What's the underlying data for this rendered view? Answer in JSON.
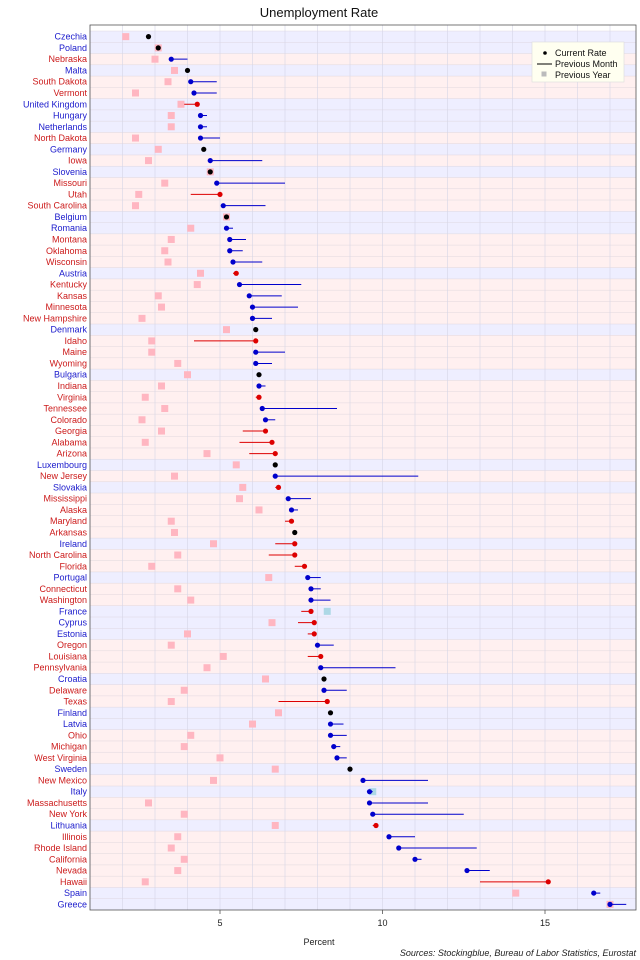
{
  "chart_data": {
    "type": "scatter",
    "title": "Unemployment Rate",
    "xlabel": "Percent",
    "ylabel": "",
    "source": "Sources: Stockingblue, Bureau of Labor Statistics, Eurostat",
    "xlim": [
      1.0,
      17.8
    ],
    "xticks": [
      5,
      10,
      15
    ],
    "legend": {
      "position": "top-right",
      "items": [
        "Current Rate",
        "Previous Month",
        "Previous Year"
      ]
    },
    "colors": {
      "eu_label": "#1a1acc",
      "us_label": "#cc1a1a",
      "improving": "#0000cc",
      "worsening": "#dd0000",
      "unchanged": "#000000",
      "prev_year_us": "#ffb6c1",
      "prev_year_eu": "#add8e6",
      "eu_band": "#eeeeff",
      "us_band": "#fff0f0"
    },
    "rows": [
      {
        "name": "Czechia",
        "group": "EU",
        "current": 2.8,
        "prev_month": 2.8,
        "prev_year": 2.1
      },
      {
        "name": "Poland",
        "group": "EU",
        "current": 3.1,
        "prev_month": 3.1,
        "prev_year": 3.1
      },
      {
        "name": "Nebraska",
        "group": "US",
        "current": 3.5,
        "prev_month": 4.0,
        "prev_year": 3.0
      },
      {
        "name": "Malta",
        "group": "EU",
        "current": 4.0,
        "prev_month": 4.0,
        "prev_year": 3.6
      },
      {
        "name": "South Dakota",
        "group": "US",
        "current": 4.1,
        "prev_month": 4.9,
        "prev_year": 3.4
      },
      {
        "name": "Vermont",
        "group": "US",
        "current": 4.2,
        "prev_month": 4.9,
        "prev_year": 2.4
      },
      {
        "name": "United Kingdom",
        "group": "EU",
        "current": 4.3,
        "prev_month": 3.9,
        "prev_year": 3.8
      },
      {
        "name": "Hungary",
        "group": "EU",
        "current": 4.4,
        "prev_month": 4.6,
        "prev_year": 3.5
      },
      {
        "name": "Netherlands",
        "group": "EU",
        "current": 4.4,
        "prev_month": 4.6,
        "prev_year": 3.5
      },
      {
        "name": "North Dakota",
        "group": "US",
        "current": 4.4,
        "prev_month": 5.0,
        "prev_year": 2.4
      },
      {
        "name": "Germany",
        "group": "EU",
        "current": 4.5,
        "prev_month": 4.5,
        "prev_year": 3.1
      },
      {
        "name": "Iowa",
        "group": "US",
        "current": 4.7,
        "prev_month": 6.3,
        "prev_year": 2.8
      },
      {
        "name": "Slovenia",
        "group": "EU",
        "current": 4.7,
        "prev_month": 4.7,
        "prev_year": 4.7
      },
      {
        "name": "Missouri",
        "group": "US",
        "current": 4.9,
        "prev_month": 7.0,
        "prev_year": 3.3
      },
      {
        "name": "Utah",
        "group": "US",
        "current": 5.0,
        "prev_month": 4.1,
        "prev_year": 2.5
      },
      {
        "name": "South Carolina",
        "group": "US",
        "current": 5.1,
        "prev_month": 6.4,
        "prev_year": 2.4
      },
      {
        "name": "Belgium",
        "group": "EU",
        "current": 5.2,
        "prev_month": 5.2,
        "prev_year": 5.2
      },
      {
        "name": "Romania",
        "group": "EU",
        "current": 5.2,
        "prev_month": 5.4,
        "prev_year": 4.1
      },
      {
        "name": "Montana",
        "group": "US",
        "current": 5.3,
        "prev_month": 5.8,
        "prev_year": 3.5
      },
      {
        "name": "Oklahoma",
        "group": "US",
        "current": 5.3,
        "prev_month": 5.7,
        "prev_year": 3.3
      },
      {
        "name": "Wisconsin",
        "group": "US",
        "current": 5.4,
        "prev_month": 6.3,
        "prev_year": 3.4
      },
      {
        "name": "Austria",
        "group": "EU",
        "current": 5.5,
        "prev_month": 5.4,
        "prev_year": 4.4
      },
      {
        "name": "Kentucky",
        "group": "US",
        "current": 5.6,
        "prev_month": 7.5,
        "prev_year": 4.3
      },
      {
        "name": "Kansas",
        "group": "US",
        "current": 5.9,
        "prev_month": 6.9,
        "prev_year": 3.1
      },
      {
        "name": "Minnesota",
        "group": "US",
        "current": 6.0,
        "prev_month": 7.4,
        "prev_year": 3.2
      },
      {
        "name": "New Hampshire",
        "group": "US",
        "current": 6.0,
        "prev_month": 6.6,
        "prev_year": 2.6
      },
      {
        "name": "Denmark",
        "group": "EU",
        "current": 6.1,
        "prev_month": 6.1,
        "prev_year": 5.2
      },
      {
        "name": "Idaho",
        "group": "US",
        "current": 6.1,
        "prev_month": 4.2,
        "prev_year": 2.9
      },
      {
        "name": "Maine",
        "group": "US",
        "current": 6.1,
        "prev_month": 7.0,
        "prev_year": 2.9
      },
      {
        "name": "Wyoming",
        "group": "US",
        "current": 6.1,
        "prev_month": 6.6,
        "prev_year": 3.7
      },
      {
        "name": "Bulgaria",
        "group": "EU",
        "current": 6.2,
        "prev_month": 6.2,
        "prev_year": 4.0
      },
      {
        "name": "Indiana",
        "group": "US",
        "current": 6.2,
        "prev_month": 6.4,
        "prev_year": 3.2
      },
      {
        "name": "Virginia",
        "group": "US",
        "current": 6.2,
        "prev_month": 6.1,
        "prev_year": 2.7
      },
      {
        "name": "Tennessee",
        "group": "US",
        "current": 6.3,
        "prev_month": 8.6,
        "prev_year": 3.3
      },
      {
        "name": "Colorado",
        "group": "US",
        "current": 6.4,
        "prev_month": 6.7,
        "prev_year": 2.6
      },
      {
        "name": "Georgia",
        "group": "US",
        "current": 6.4,
        "prev_month": 5.7,
        "prev_year": 3.2
      },
      {
        "name": "Alabama",
        "group": "US",
        "current": 6.6,
        "prev_month": 5.6,
        "prev_year": 2.7
      },
      {
        "name": "Arizona",
        "group": "US",
        "current": 6.7,
        "prev_month": 5.9,
        "prev_year": 4.6
      },
      {
        "name": "Luxembourg",
        "group": "EU",
        "current": 6.7,
        "prev_month": 6.7,
        "prev_year": 5.5
      },
      {
        "name": "New Jersey",
        "group": "US",
        "current": 6.7,
        "prev_month": 11.1,
        "prev_year": 3.6
      },
      {
        "name": "Slovakia",
        "group": "EU",
        "current": 6.8,
        "prev_month": 6.7,
        "prev_year": 5.7
      },
      {
        "name": "Mississippi",
        "group": "US",
        "current": 7.1,
        "prev_month": 7.8,
        "prev_year": 5.6
      },
      {
        "name": "Alaska",
        "group": "US",
        "current": 7.2,
        "prev_month": 7.4,
        "prev_year": 6.2
      },
      {
        "name": "Maryland",
        "group": "US",
        "current": 7.2,
        "prev_month": 7.0,
        "prev_year": 3.5
      },
      {
        "name": "Arkansas",
        "group": "US",
        "current": 7.3,
        "prev_month": 7.3,
        "prev_year": 3.6
      },
      {
        "name": "Ireland",
        "group": "EU",
        "current": 7.3,
        "prev_month": 6.7,
        "prev_year": 4.8
      },
      {
        "name": "North Carolina",
        "group": "US",
        "current": 7.3,
        "prev_month": 6.5,
        "prev_year": 3.7
      },
      {
        "name": "Florida",
        "group": "US",
        "current": 7.6,
        "prev_month": 7.3,
        "prev_year": 2.9
      },
      {
        "name": "Portugal",
        "group": "EU",
        "current": 7.7,
        "prev_month": 8.1,
        "prev_year": 6.5
      },
      {
        "name": "Connecticut",
        "group": "US",
        "current": 7.8,
        "prev_month": 8.1,
        "prev_year": 3.7
      },
      {
        "name": "Washington",
        "group": "US",
        "current": 7.8,
        "prev_month": 8.4,
        "prev_year": 4.1
      },
      {
        "name": "France",
        "group": "EU",
        "current": 7.8,
        "prev_month": 7.5,
        "prev_year": 8.3
      },
      {
        "name": "Cyprus",
        "group": "EU",
        "current": 7.9,
        "prev_month": 7.4,
        "prev_year": 6.6
      },
      {
        "name": "Estonia",
        "group": "EU",
        "current": 7.9,
        "prev_month": 7.7,
        "prev_year": 4.0
      },
      {
        "name": "Oregon",
        "group": "US",
        "current": 8.0,
        "prev_month": 8.5,
        "prev_year": 3.5
      },
      {
        "name": "Louisiana",
        "group": "US",
        "current": 8.1,
        "prev_month": 7.7,
        "prev_year": 5.1
      },
      {
        "name": "Pennsylvania",
        "group": "US",
        "current": 8.1,
        "prev_month": 10.4,
        "prev_year": 4.6
      },
      {
        "name": "Croatia",
        "group": "EU",
        "current": 8.2,
        "prev_month": 8.2,
        "prev_year": 6.4
      },
      {
        "name": "Delaware",
        "group": "US",
        "current": 8.2,
        "prev_month": 8.9,
        "prev_year": 3.9
      },
      {
        "name": "Texas",
        "group": "US",
        "current": 8.3,
        "prev_month": 6.8,
        "prev_year": 3.5
      },
      {
        "name": "Finland",
        "group": "EU",
        "current": 8.4,
        "prev_month": 8.4,
        "prev_year": 6.8
      },
      {
        "name": "Latvia",
        "group": "EU",
        "current": 8.4,
        "prev_month": 8.8,
        "prev_year": 6.0
      },
      {
        "name": "Ohio",
        "group": "US",
        "current": 8.4,
        "prev_month": 8.9,
        "prev_year": 4.1
      },
      {
        "name": "Michigan",
        "group": "US",
        "current": 8.5,
        "prev_month": 8.7,
        "prev_year": 3.9
      },
      {
        "name": "West Virginia",
        "group": "US",
        "current": 8.6,
        "prev_month": 8.9,
        "prev_year": 5.0
      },
      {
        "name": "Sweden",
        "group": "EU",
        "current": 9.0,
        "prev_month": 9.0,
        "prev_year": 6.7
      },
      {
        "name": "New Mexico",
        "group": "US",
        "current": 9.4,
        "prev_month": 11.4,
        "prev_year": 4.8
      },
      {
        "name": "Italy",
        "group": "EU",
        "current": 9.6,
        "prev_month": 9.7,
        "prev_year": 9.7
      },
      {
        "name": "Massachusetts",
        "group": "US",
        "current": 9.6,
        "prev_month": 11.4,
        "prev_year": 2.8
      },
      {
        "name": "New York",
        "group": "US",
        "current": 9.7,
        "prev_month": 12.5,
        "prev_year": 3.9
      },
      {
        "name": "Lithuania",
        "group": "EU",
        "current": 9.8,
        "prev_month": 9.7,
        "prev_year": 6.7
      },
      {
        "name": "Illinois",
        "group": "US",
        "current": 10.2,
        "prev_month": 11.0,
        "prev_year": 3.7
      },
      {
        "name": "Rhode Island",
        "group": "US",
        "current": 10.5,
        "prev_month": 12.9,
        "prev_year": 3.5
      },
      {
        "name": "California",
        "group": "US",
        "current": 11.0,
        "prev_month": 11.2,
        "prev_year": 3.9
      },
      {
        "name": "Nevada",
        "group": "US",
        "current": 12.6,
        "prev_month": 13.3,
        "prev_year": 3.7
      },
      {
        "name": "Hawaii",
        "group": "US",
        "current": 15.1,
        "prev_month": 13.0,
        "prev_year": 2.7
      },
      {
        "name": "Spain",
        "group": "EU",
        "current": 16.5,
        "prev_month": 16.7,
        "prev_year": 14.1
      },
      {
        "name": "Greece",
        "group": "EU",
        "current": 17.0,
        "prev_month": 17.5,
        "prev_year": 17.0
      }
    ]
  }
}
